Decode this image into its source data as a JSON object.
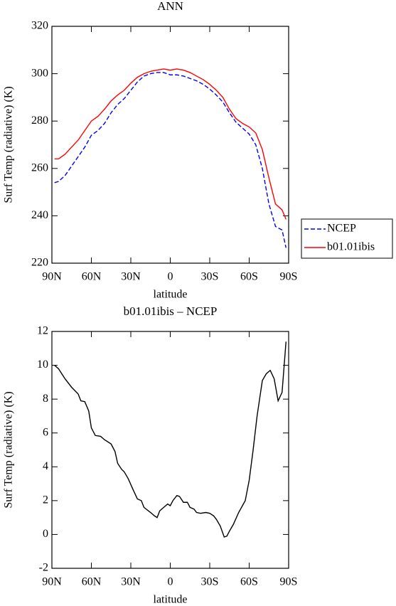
{
  "chart_data": [
    {
      "type": "line",
      "title": "ANN",
      "xlabel": "latitude",
      "ylabel": "Surf Temp (radiative) (K)",
      "x": [
        88,
        85,
        80,
        75,
        70,
        65,
        60,
        55,
        50,
        45,
        40,
        35,
        30,
        25,
        20,
        15,
        10,
        5,
        0,
        -5,
        -10,
        -15,
        -20,
        -25,
        -30,
        -35,
        -40,
        -45,
        -50,
        -55,
        -60,
        -65,
        -70,
        -75,
        -80,
        -85,
        -88
      ],
      "series": [
        {
          "name": "NCEP",
          "color": "#0000ff",
          "dashed": true,
          "values": [
            254,
            254.5,
            257,
            261,
            265,
            269,
            274,
            276,
            279,
            283.5,
            287,
            289.5,
            293,
            296.5,
            299,
            300,
            300.5,
            300.5,
            299.5,
            299.5,
            299,
            298,
            297,
            295.5,
            293.5,
            291,
            288,
            283.5,
            279.5,
            277,
            274.5,
            270,
            260,
            245,
            235.5,
            234,
            226.5
          ]
        },
        {
          "name": "b01.01ibis",
          "color": "#ff0000",
          "dashed": false,
          "values": [
            264,
            264,
            266,
            269,
            272,
            276,
            280,
            282,
            285,
            288.5,
            291,
            293,
            296,
            298.5,
            300,
            301,
            301.5,
            302,
            301.5,
            302,
            301.5,
            300.5,
            299,
            297.5,
            295.5,
            293,
            290,
            285,
            281,
            279,
            277.5,
            275,
            268,
            256,
            245,
            242.5,
            238.5
          ]
        }
      ],
      "xlim": [
        90,
        -90
      ],
      "xticks": [
        {
          "value": 90,
          "label": "90N"
        },
        {
          "value": 60,
          "label": "60N"
        },
        {
          "value": 30,
          "label": "30N"
        },
        0,
        {
          "value": -30,
          "label": "30S"
        },
        {
          "value": -60,
          "label": "60S"
        },
        {
          "value": -90,
          "label": "90S"
        }
      ],
      "ylim": [
        220,
        320
      ],
      "yticks": [
        220,
        240,
        260,
        280,
        300,
        320
      ],
      "legend": "right"
    },
    {
      "type": "line",
      "title": "b01.01ibis – NCEP",
      "xlabel": "latitude",
      "ylabel": "Surf Temp (radiative) (K)",
      "x": [
        88,
        85,
        80,
        75,
        70,
        68,
        65,
        62,
        60,
        57,
        53,
        50,
        45,
        42,
        40,
        37,
        35,
        32,
        28,
        25,
        22,
        20,
        15,
        12,
        10,
        8,
        5,
        2,
        0,
        -2,
        -5,
        -7,
        -10,
        -13,
        -15,
        -18,
        -20,
        -23,
        -27,
        -30,
        -33,
        -35,
        -38,
        -41,
        -43,
        -45,
        -48,
        -52,
        -57,
        -60,
        -63,
        -66,
        -70,
        -73,
        -76,
        -79,
        -82,
        -85,
        -88
      ],
      "values": [
        10,
        9.8,
        9.2,
        8.7,
        8.3,
        7.9,
        7.85,
        7.3,
        6.3,
        5.85,
        5.8,
        5.6,
        5.35,
        4.9,
        4.2,
        3.85,
        3.7,
        3.3,
        2.6,
        2.1,
        2.0,
        1.6,
        1.3,
        1.1,
        1.0,
        1.4,
        1.6,
        1.8,
        1.7,
        2.0,
        2.3,
        2.25,
        1.9,
        1.9,
        1.6,
        1.5,
        1.3,
        1.25,
        1.3,
        1.25,
        1.1,
        0.9,
        0.5,
        -0.15,
        -0.1,
        0.2,
        0.6,
        1.3,
        2.0,
        3.2,
        5.0,
        7.0,
        9.1,
        9.5,
        9.7,
        9.2,
        7.9,
        8.4,
        11.4
      ],
      "color": "#000000",
      "xlim": [
        90,
        -90
      ],
      "xticks": [
        {
          "value": 90,
          "label": "90N"
        },
        {
          "value": 60,
          "label": "60N"
        },
        {
          "value": 30,
          "label": "30N"
        },
        0,
        {
          "value": -30,
          "label": "30S"
        },
        {
          "value": -60,
          "label": "60S"
        },
        {
          "value": -90,
          "label": "90S"
        }
      ],
      "ylim": [
        -2,
        12
      ],
      "yticks": [
        -2,
        0,
        2,
        4,
        6,
        8,
        10,
        12
      ]
    }
  ]
}
